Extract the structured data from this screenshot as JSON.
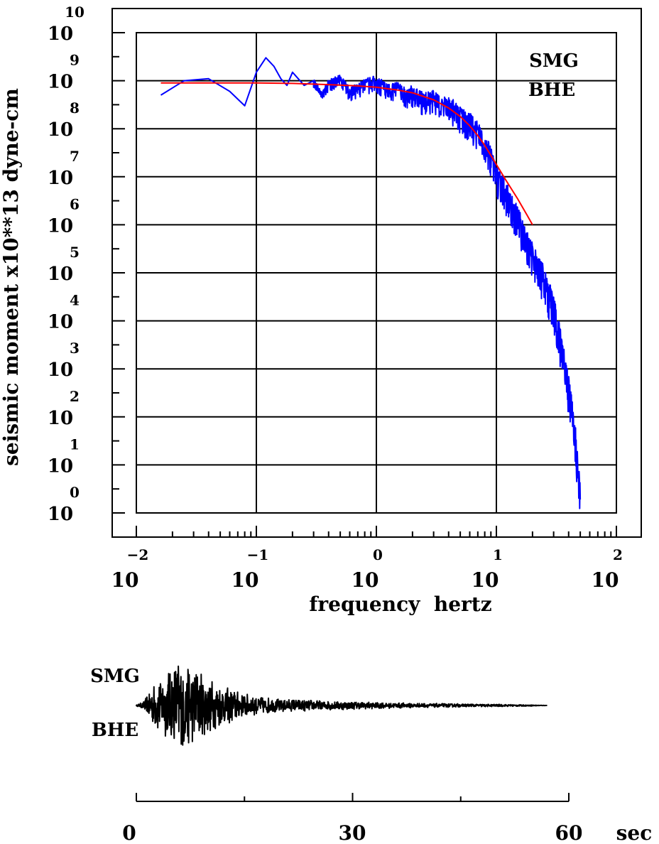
{
  "chart_data": [
    {
      "type": "line",
      "title": "",
      "xlabel": "frequency  hertz",
      "ylabel": "seismic moment x10**13 dyne-cm",
      "x_scale": "log",
      "y_scale": "log",
      "xlim": [
        0.01,
        100
      ],
      "ylim": [
        1,
        10000000000
      ],
      "x_ticks": [
        {
          "base": "10",
          "exp": "−2"
        },
        {
          "base": "10",
          "exp": "−1"
        },
        {
          "base": "10",
          "exp": "0"
        },
        {
          "base": "10",
          "exp": "1"
        },
        {
          "base": "10",
          "exp": "2"
        }
      ],
      "y_ticks": [
        {
          "base": "10",
          "exp": "0"
        },
        {
          "base": "10",
          "exp": "1"
        },
        {
          "base": "10",
          "exp": "2"
        },
        {
          "base": "10",
          "exp": "3"
        },
        {
          "base": "10",
          "exp": "4"
        },
        {
          "base": "10",
          "exp": "5"
        },
        {
          "base": "10",
          "exp": "6"
        },
        {
          "base": "10",
          "exp": "7"
        },
        {
          "base": "10",
          "exp": "8"
        },
        {
          "base": "10",
          "exp": "9"
        },
        {
          "base": "10",
          "exp": "10"
        }
      ],
      "grid": true,
      "annotation": [
        "SMG",
        "BHE"
      ],
      "colors": {
        "spectrum": "#0000ff",
        "model_fit": "#ff0000",
        "axes": "#000000"
      },
      "series": [
        {
          "color": "#0000ff",
          "x": [
            0.016,
            0.025,
            0.04,
            0.06,
            0.08,
            0.1,
            0.12,
            0.14,
            0.16,
            0.18,
            0.2,
            0.25,
            0.3,
            0.35,
            0.4,
            0.5,
            0.6,
            0.7,
            0.8,
            1.0,
            1.2,
            1.5,
            1.8,
            2.0,
            2.5,
            3.0,
            3.5,
            4.0,
            5.0,
            6.0,
            7.0,
            8.0,
            10.0,
            12.0,
            15.0,
            18.0,
            20.0,
            25.0,
            30.0,
            35.0,
            40.0,
            45.0,
            50.0
          ],
          "y": [
            500000000,
            1000000000,
            1100000000,
            600000000,
            300000000,
            1500000000,
            3000000000,
            2000000000,
            1100000000,
            800000000,
            1500000000,
            800000000,
            1000000000,
            500000000,
            900000000,
            1100000000,
            600000000,
            700000000,
            900000000,
            1000000000,
            700000000,
            700000000,
            500000000,
            600000000,
            400000000,
            500000000,
            300000000,
            350000000,
            200000000,
            150000000,
            90000000,
            60000000,
            12000000,
            5000000,
            1500000,
            500000,
            250000,
            80000,
            20000,
            3000,
            400,
            60,
            2
          ]
        },
        {
          "color": "#ff0000",
          "x": [
            0.016,
            0.03,
            0.05,
            0.1,
            0.2,
            0.4,
            0.7,
            1.0,
            1.5,
            2.0,
            3.0,
            4.0,
            5.0,
            6.0,
            7.0,
            8.0,
            10.0,
            12.0,
            15.0,
            18.0,
            20.0
          ],
          "y": [
            900000000,
            900000000,
            900000000,
            900000000,
            880000000,
            830000000,
            780000000,
            730000000,
            640000000,
            560000000,
            400000000,
            270000000,
            180000000,
            115000000,
            72000000,
            45000000,
            18000000,
            8500000,
            3500000,
            1600000,
            1000000
          ]
        }
      ]
    },
    {
      "type": "line",
      "title": "",
      "xlabel": "",
      "ylabel": "",
      "x_unit": "sec",
      "xlim": [
        0,
        60
      ],
      "x_ticks": [
        "0",
        "30",
        "60"
      ],
      "minor_x_ticks": [
        15,
        45
      ],
      "label": [
        "SMG",
        "BHE"
      ],
      "color": "#000000",
      "envelope": {
        "t": [
          0,
          1,
          2,
          3,
          4,
          5,
          6,
          7,
          8,
          9,
          10,
          11,
          12,
          13,
          14,
          15,
          17,
          20,
          25,
          30,
          35,
          40,
          45,
          50,
          55,
          57
        ],
        "amplitude": [
          0.01,
          0.08,
          0.35,
          0.55,
          0.7,
          0.85,
          1.0,
          0.9,
          0.8,
          0.7,
          0.6,
          0.5,
          0.45,
          0.38,
          0.32,
          0.25,
          0.18,
          0.14,
          0.11,
          0.08,
          0.06,
          0.045,
          0.035,
          0.025,
          0.012,
          0.0
        ]
      }
    }
  ]
}
